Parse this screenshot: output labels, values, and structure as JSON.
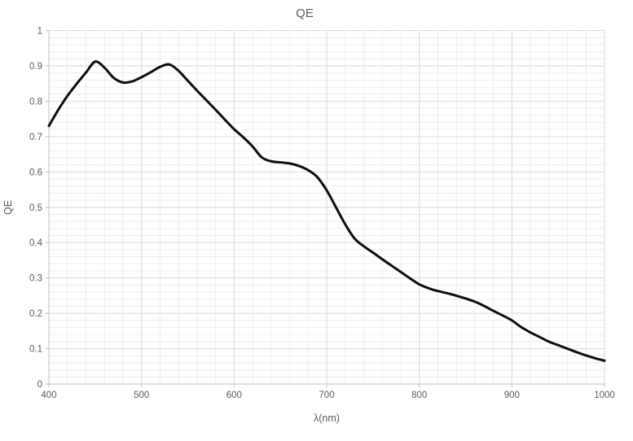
{
  "title": "QE",
  "x_axis": {
    "title": "λ(nm)",
    "min": 400,
    "max": 1000,
    "major_step": 100,
    "minor_step": 20,
    "tick_labels": [
      "400",
      "500",
      "600",
      "700",
      "800",
      "900",
      "1000"
    ]
  },
  "y_axis": {
    "title": "QE",
    "min": 0,
    "max": 1,
    "major_step": 0.1,
    "minor_step": 0.02,
    "tick_labels": [
      "0",
      "0.1",
      "0.2",
      "0.3",
      "0.4",
      "0.5",
      "0.6",
      "0.7",
      "0.8",
      "0.9",
      "1"
    ]
  },
  "colors": {
    "line": "#0d0d0d",
    "major_grid": "#d9d9d9",
    "minor_grid": "#ededed",
    "axis_line": "#bfbfbf",
    "text": "#595959",
    "background": "#ffffff"
  },
  "chart_data": {
    "type": "line",
    "title": "QE",
    "xlabel": "λ(nm)",
    "ylabel": "QE",
    "xlim": [
      400,
      1000
    ],
    "ylim": [
      0,
      1
    ],
    "grid": "major-and-minor",
    "legend": "none",
    "series": [
      {
        "name": "QE",
        "x": [
          400,
          410,
          420,
          430,
          440,
          450,
          460,
          470,
          480,
          490,
          500,
          510,
          520,
          530,
          540,
          550,
          560,
          570,
          580,
          590,
          600,
          610,
          620,
          630,
          640,
          650,
          660,
          670,
          680,
          690,
          700,
          710,
          720,
          730,
          740,
          750,
          760,
          770,
          780,
          790,
          800,
          810,
          820,
          830,
          840,
          850,
          860,
          870,
          880,
          890,
          900,
          910,
          920,
          930,
          940,
          950,
          960,
          970,
          980,
          990,
          1000
        ],
        "y": [
          0.73,
          0.775,
          0.815,
          0.849,
          0.881,
          0.912,
          0.895,
          0.866,
          0.853,
          0.856,
          0.868,
          0.882,
          0.897,
          0.904,
          0.886,
          0.858,
          0.83,
          0.803,
          0.776,
          0.748,
          0.721,
          0.698,
          0.672,
          0.641,
          0.63,
          0.627,
          0.624,
          0.617,
          0.605,
          0.585,
          0.548,
          0.5,
          0.452,
          0.412,
          0.39,
          0.372,
          0.353,
          0.335,
          0.317,
          0.299,
          0.282,
          0.271,
          0.263,
          0.257,
          0.25,
          0.242,
          0.233,
          0.221,
          0.207,
          0.194,
          0.18,
          0.161,
          0.146,
          0.133,
          0.12,
          0.11,
          0.1,
          0.09,
          0.081,
          0.073,
          0.066
        ]
      }
    ]
  }
}
